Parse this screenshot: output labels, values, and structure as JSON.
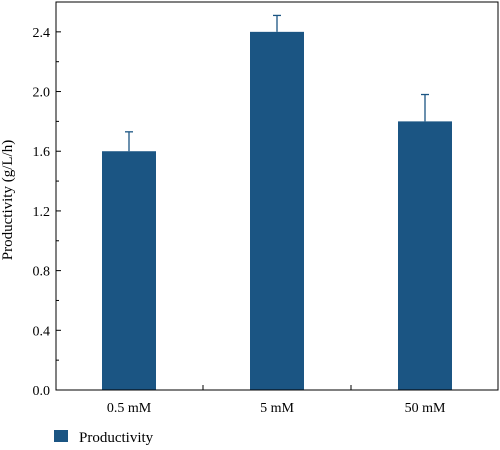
{
  "chart_data": {
    "type": "bar",
    "categories": [
      "0.5 mM",
      "5 mM",
      "50 mM"
    ],
    "series": [
      {
        "name": "Productivity",
        "values": [
          1.6,
          2.4,
          1.8
        ],
        "errors": [
          0.13,
          0.11,
          0.18
        ],
        "color": "#1b5583"
      }
    ],
    "title": "",
    "xlabel": "",
    "ylabel": "Productivity (g/L/h)",
    "ylim": [
      0,
      2.6
    ],
    "yticks": [
      "0.0",
      "0.4",
      "0.8",
      "1.2",
      "1.6",
      "2.0",
      "2.4"
    ],
    "grid": false,
    "legend_position": "bottom-left"
  }
}
